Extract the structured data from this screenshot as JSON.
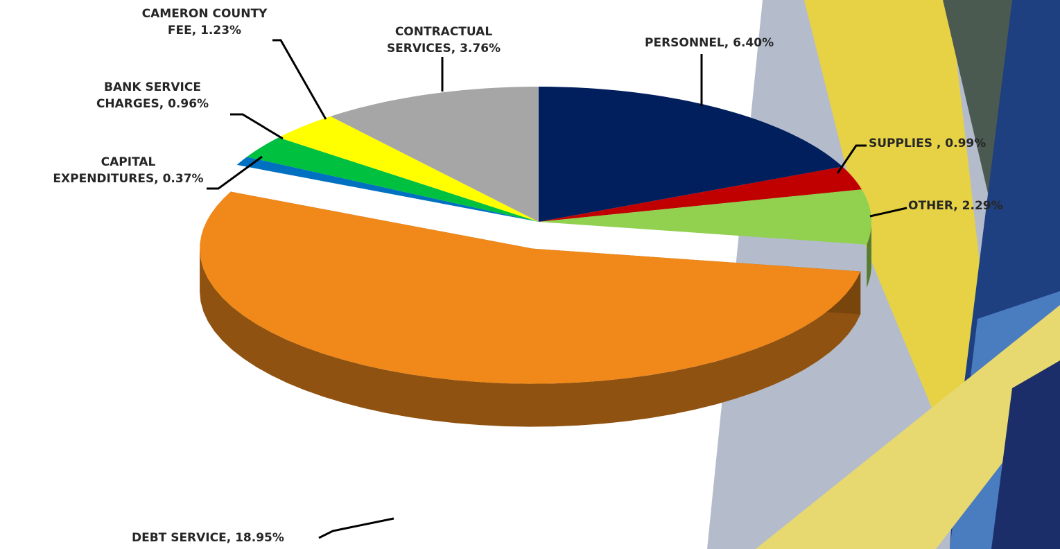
{
  "chart_data": {
    "type": "pie3d",
    "values": [
      6.4,
      0.99,
      2.29,
      18.95,
      0.37,
      0.96,
      1.23,
      3.76
    ],
    "value_labels": [
      "PERSONNEL, 6.40%",
      "SUPPLIES , 0.99%",
      "OTHER, 2.29%",
      "DEBT SERVICE, 18.95%",
      "CAPITAL\nEXPENDITURES, 0.37%",
      "BANK SERVICE\nCHARGES, 0.96%",
      "CAMERON COUNTY\nFEE, 1.23%",
      "CONTRACTUAL\nSERVICES, 3.76%"
    ],
    "colors": [
      "#001f5c",
      "#c00000",
      "#92d050",
      "#f0891a",
      "#0070c0",
      "#00c040",
      "#ffff00",
      "#a6a6a6"
    ],
    "exploded": [
      false,
      false,
      false,
      true,
      false,
      false,
      false,
      false
    ]
  }
}
